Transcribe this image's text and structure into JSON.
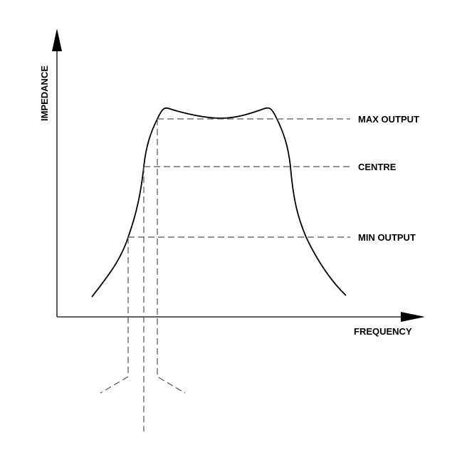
{
  "diagram": {
    "y_axis_label": "IMPEDANCE",
    "x_axis_label": "FREQUENCY",
    "levels": [
      {
        "id": "max",
        "label": "MAX OUTPUT"
      },
      {
        "id": "centre",
        "label": "CENTRE"
      },
      {
        "id": "min",
        "label": "MIN OUTPUT"
      }
    ],
    "colors": {
      "curve": "#000000",
      "dashed": "#555555",
      "axis": "#000000"
    }
  }
}
